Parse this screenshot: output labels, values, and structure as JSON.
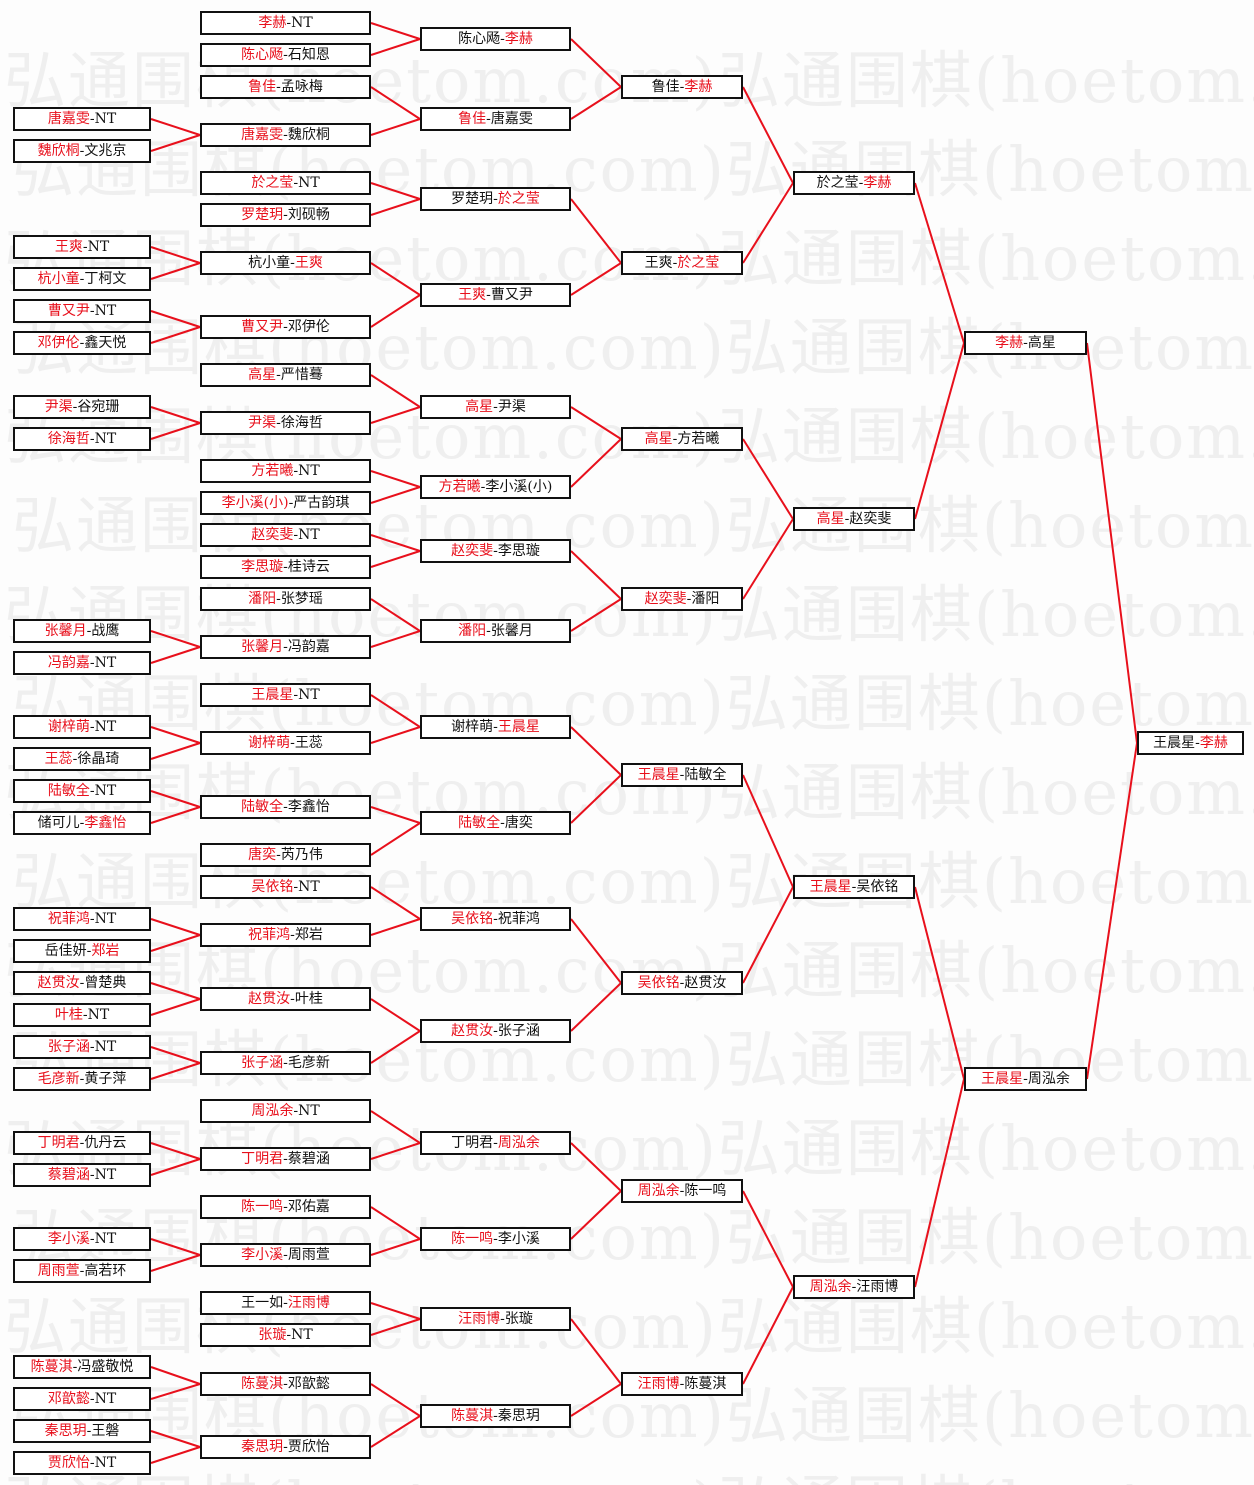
{
  "watermark": "弘通围棋(hoetom.com)",
  "colors": {
    "winner": "#e8101c",
    "line": "#e8101c",
    "text": "#111111",
    "border": "#111111"
  },
  "separator": "-",
  "rounds": [
    {
      "matches": [
        {
          "a": "唐嘉雯",
          "b": "NT",
          "w": 0
        },
        {
          "a": "魏欣桐",
          "b": "文兆京",
          "w": 0
        },
        {
          "a": "王爽",
          "b": "NT",
          "w": 0
        },
        {
          "a": "杭小童",
          "b": "丁柯文",
          "w": 0
        },
        {
          "a": "曹又尹",
          "b": "NT",
          "w": 0
        },
        {
          "a": "邓伊伦",
          "b": "鑫天悦",
          "w": 0
        },
        {
          "a": "尹渠",
          "b": "谷宛珊",
          "w": 0
        },
        {
          "a": "徐海哲",
          "b": "NT",
          "w": 0
        },
        {
          "a": "张馨月",
          "b": "战鹰",
          "w": 0
        },
        {
          "a": "冯韵嘉",
          "b": "NT",
          "w": 0
        },
        {
          "a": "谢梓萌",
          "b": "NT",
          "w": 0
        },
        {
          "a": "王蕊",
          "b": "徐晶琦",
          "w": 0
        },
        {
          "a": "陆敏全",
          "b": "NT",
          "w": 0
        },
        {
          "a": "储可儿",
          "b": "李鑫怡",
          "w": 1
        },
        {
          "a": "祝菲鸿",
          "b": "NT",
          "w": 0
        },
        {
          "a": "岳佳妍",
          "b": "郑岩",
          "w": 1
        },
        {
          "a": "赵贯汝",
          "b": "曾楚典",
          "w": 0
        },
        {
          "a": "叶桂",
          "b": "NT",
          "w": 0
        },
        {
          "a": "张子涵",
          "b": "NT",
          "w": 0
        },
        {
          "a": "毛彦新",
          "b": "黄子萍",
          "w": 0
        },
        {
          "a": "丁明君",
          "b": "仇丹云",
          "w": 0
        },
        {
          "a": "蔡碧涵",
          "b": "NT",
          "w": 0
        },
        {
          "a": "李小溪",
          "b": "NT",
          "w": 0
        },
        {
          "a": "周雨萱",
          "b": "高若环",
          "w": 0
        },
        {
          "a": "陈蔓淇",
          "b": "冯盛敬悦",
          "w": 0
        },
        {
          "a": "邓歆懿",
          "b": "NT",
          "w": 0
        },
        {
          "a": "秦思玥",
          "b": "王磐",
          "w": 0
        },
        {
          "a": "贾欣怡",
          "b": "NT",
          "w": 0
        }
      ]
    },
    {
      "matches": [
        {
          "a": "李赫",
          "b": "NT",
          "w": 0
        },
        {
          "a": "陈心飏",
          "b": "石知恩",
          "w": 0
        },
        {
          "a": "鲁佳",
          "b": "孟咏梅",
          "w": 0
        },
        {
          "a": "唐嘉雯",
          "b": "魏欣桐",
          "w": 0
        },
        {
          "a": "於之莹",
          "b": "NT",
          "w": 0
        },
        {
          "a": "罗楚玥",
          "b": "刘砚畅",
          "w": 0
        },
        {
          "a": "杭小童",
          "b": "王爽",
          "w": 1
        },
        {
          "a": "曹又尹",
          "b": "邓伊伦",
          "w": 0
        },
        {
          "a": "高星",
          "b": "严惜蓦",
          "w": 0
        },
        {
          "a": "尹渠",
          "b": "徐海哲",
          "w": 0
        },
        {
          "a": "方若曦",
          "b": "NT",
          "w": 0
        },
        {
          "a": "李小溪(小)",
          "b": "严古韵琪",
          "w": 0
        },
        {
          "a": "赵奕斐",
          "b": "NT",
          "w": 0
        },
        {
          "a": "李思璇",
          "b": "桂诗云",
          "w": 0
        },
        {
          "a": "潘阳",
          "b": "张梦瑶",
          "w": 0
        },
        {
          "a": "张馨月",
          "b": "冯韵嘉",
          "w": 0
        },
        {
          "a": "王晨星",
          "b": "NT",
          "w": 0
        },
        {
          "a": "谢梓萌",
          "b": "王蕊",
          "w": 0
        },
        {
          "a": "陆敏全",
          "b": "李鑫怡",
          "w": 0
        },
        {
          "a": "唐奕",
          "b": "芮乃伟",
          "w": 0
        },
        {
          "a": "吴依铭",
          "b": "NT",
          "w": 0
        },
        {
          "a": "祝菲鸿",
          "b": "郑岩",
          "w": 0
        },
        {
          "a": "赵贯汝",
          "b": "叶桂",
          "w": 0
        },
        {
          "a": "张子涵",
          "b": "毛彦新",
          "w": 0
        },
        {
          "a": "周泓余",
          "b": "NT",
          "w": 0
        },
        {
          "a": "丁明君",
          "b": "蔡碧涵",
          "w": 0
        },
        {
          "a": "陈一鸣",
          "b": "邓佑嘉",
          "w": 0
        },
        {
          "a": "李小溪",
          "b": "周雨萱",
          "w": 0
        },
        {
          "a": "王一如",
          "b": "汪雨博",
          "w": 1
        },
        {
          "a": "张璇",
          "b": "NT",
          "w": 0
        },
        {
          "a": "陈蔓淇",
          "b": "邓歆懿",
          "w": 0
        },
        {
          "a": "秦思玥",
          "b": "贾欣怡",
          "w": 0
        }
      ]
    },
    {
      "matches": [
        {
          "a": "陈心飏",
          "b": "李赫",
          "w": 1
        },
        {
          "a": "鲁佳",
          "b": "唐嘉雯",
          "w": 0
        },
        {
          "a": "罗楚玥",
          "b": "於之莹",
          "w": 1
        },
        {
          "a": "王爽",
          "b": "曹又尹",
          "w": 0
        },
        {
          "a": "高星",
          "b": "尹渠",
          "w": 0
        },
        {
          "a": "方若曦",
          "b": "李小溪(小)",
          "w": 0
        },
        {
          "a": "赵奕斐",
          "b": "李思璇",
          "w": 0
        },
        {
          "a": "潘阳",
          "b": "张馨月",
          "w": 0
        },
        {
          "a": "谢梓萌",
          "b": "王晨星",
          "w": 1
        },
        {
          "a": "陆敏全",
          "b": "唐奕",
          "w": 0
        },
        {
          "a": "吴依铭",
          "b": "祝菲鸿",
          "w": 0
        },
        {
          "a": "赵贯汝",
          "b": "张子涵",
          "w": 0
        },
        {
          "a": "丁明君",
          "b": "周泓余",
          "w": 1
        },
        {
          "a": "陈一鸣",
          "b": "李小溪",
          "w": 0
        },
        {
          "a": "汪雨博",
          "b": "张璇",
          "w": 0
        },
        {
          "a": "陈蔓淇",
          "b": "秦思玥",
          "w": 0
        }
      ]
    },
    {
      "matches": [
        {
          "a": "鲁佳",
          "b": "李赫",
          "w": 1
        },
        {
          "a": "王爽",
          "b": "於之莹",
          "w": 1
        },
        {
          "a": "高星",
          "b": "方若曦",
          "w": 0
        },
        {
          "a": "赵奕斐",
          "b": "潘阳",
          "w": 0
        },
        {
          "a": "王晨星",
          "b": "陆敏全",
          "w": 0
        },
        {
          "a": "吴依铭",
          "b": "赵贯汝",
          "w": 0
        },
        {
          "a": "周泓余",
          "b": "陈一鸣",
          "w": 0
        },
        {
          "a": "汪雨博",
          "b": "陈蔓淇",
          "w": 0
        }
      ]
    },
    {
      "matches": [
        {
          "a": "於之莹",
          "b": "李赫",
          "w": 1
        },
        {
          "a": "高星",
          "b": "赵奕斐",
          "w": 0
        },
        {
          "a": "王晨星",
          "b": "吴依铭",
          "w": 0
        },
        {
          "a": "周泓余",
          "b": "汪雨博",
          "w": 0
        }
      ]
    },
    {
      "matches": [
        {
          "a": "李赫",
          "b": "高星",
          "w": 0
        },
        {
          "a": "王晨星",
          "b": "周泓余",
          "w": 0
        }
      ]
    },
    {
      "matches": [
        {
          "a": "王晨星",
          "b": "李赫",
          "w": 1
        }
      ]
    }
  ]
}
